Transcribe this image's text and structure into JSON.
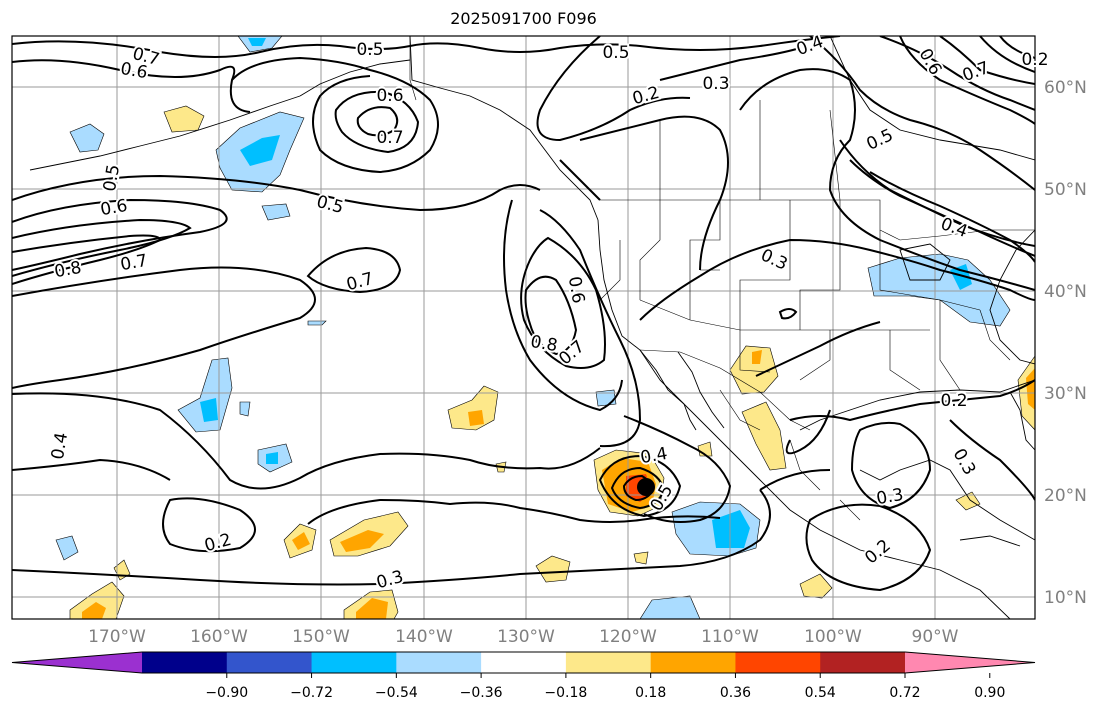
{
  "title": "2025091700 F096",
  "latitude_labels": [
    "60°N",
    "50°N",
    "40°N",
    "30°N",
    "20°N",
    "10°N"
  ],
  "longitude_labels": [
    "170°W",
    "160°W",
    "150°W",
    "140°W",
    "130°W",
    "120°W",
    "110°W",
    "100°W",
    "90°W"
  ],
  "colorbar": {
    "tick_labels": [
      "−0.90",
      "−0.72",
      "−0.54",
      "−0.36",
      "−0.18",
      "0.18",
      "0.36",
      "0.54",
      "0.72",
      "0.90"
    ],
    "colors": [
      "#9b30d0",
      "#00008b",
      "#3355cc",
      "#00bfff",
      "#aadcff",
      "#ffffff",
      "#fde88a",
      "#ffa500",
      "#ff4500",
      "#b22222",
      "#ff88b0"
    ]
  },
  "contour_labels": [
    {
      "text": "0.5"
    },
    {
      "text": "0.7"
    },
    {
      "text": "0.6"
    },
    {
      "text": "0.6"
    },
    {
      "text": "0.7"
    },
    {
      "text": "0.5"
    },
    {
      "text": "0.4"
    },
    {
      "text": "0.3"
    },
    {
      "text": "0.2"
    },
    {
      "text": "0.5"
    },
    {
      "text": "0.6"
    },
    {
      "text": "0.5"
    },
    {
      "text": "0.8"
    },
    {
      "text": "0.7"
    },
    {
      "text": "0.7"
    },
    {
      "text": "0.4"
    },
    {
      "text": "0.3"
    },
    {
      "text": "0.4"
    },
    {
      "text": "0.6"
    },
    {
      "text": "0.8"
    },
    {
      "text": "0.7"
    },
    {
      "text": "0.4"
    },
    {
      "text": "0.5"
    },
    {
      "text": "0.2"
    },
    {
      "text": "0.3"
    },
    {
      "text": "0.3"
    },
    {
      "text": "0.3"
    },
    {
      "text": "0.2"
    },
    {
      "text": "0.2"
    },
    {
      "text": "0.2"
    },
    {
      "text": "0.7"
    },
    {
      "text": "0.6"
    },
    {
      "text": "0.5"
    }
  ]
}
